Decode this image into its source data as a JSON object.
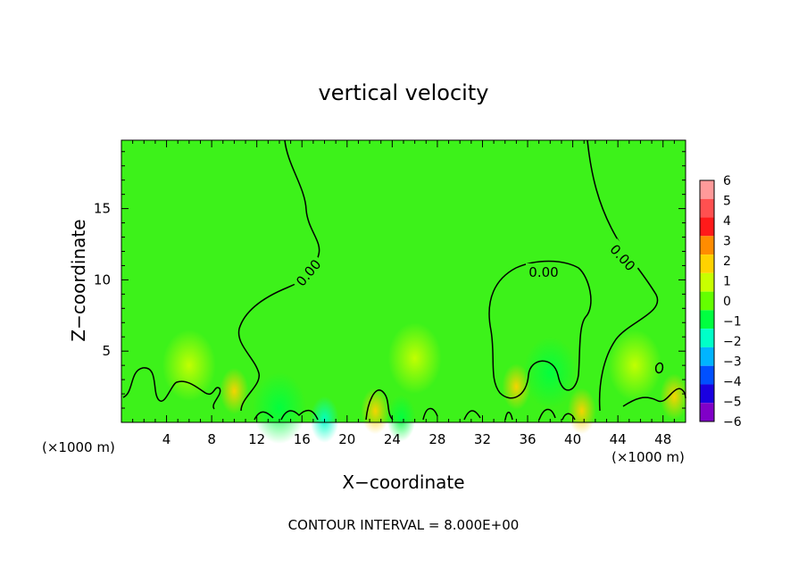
{
  "chart_data": {
    "type": "heatmap",
    "title": "vertical velocity",
    "xlabel": "X−coordinate",
    "ylabel": "Z−coordinate",
    "x_unit_left": "(×1000 m)",
    "x_unit_right": "(×1000 m)",
    "footer": "CONTOUR INTERVAL = 8.000E+00",
    "xlim": [
      0,
      50
    ],
    "ylim": [
      0,
      19.8
    ],
    "x_ticks": [
      4,
      8,
      12,
      16,
      20,
      24,
      28,
      32,
      36,
      40,
      44,
      48
    ],
    "y_ticks": [
      5,
      10,
      15
    ],
    "contour_labels": [
      "0.00",
      "0.00",
      "0.00"
    ],
    "colorbar": {
      "labels": [
        "6",
        "5",
        "4",
        "3",
        "2",
        "1",
        "0",
        "−1",
        "−2",
        "−3",
        "−4",
        "−5",
        "−6"
      ],
      "values": [
        6,
        5,
        4,
        3,
        2,
        1,
        0,
        -1,
        -2,
        -3,
        -4,
        -5,
        -6
      ],
      "colors": [
        "#ff9a9a",
        "#ff5050",
        "#ff1a1a",
        "#ff8c00",
        "#ffd200",
        "#c8ff00",
        "#64ff00",
        "#00ff40",
        "#00ffc8",
        "#00b4ff",
        "#0050ff",
        "#1a00e0",
        "#8000c8"
      ]
    },
    "background_color": "#3df21a",
    "hotspots": [
      {
        "x": 10.0,
        "z": 2.2,
        "value": 2.0
      },
      {
        "x": 35.0,
        "z": 2.5,
        "value": 2.0
      },
      {
        "x": 49.0,
        "z": 1.8,
        "value": 2.0
      },
      {
        "x": 22.5,
        "z": 0.8,
        "value": 1.5
      },
      {
        "x": 40.8,
        "z": 0.8,
        "value": 1.5
      },
      {
        "x": 6.0,
        "z": 4.0,
        "value": 0.8
      },
      {
        "x": 26.0,
        "z": 4.5,
        "value": 0.6
      },
      {
        "x": 45.5,
        "z": 4.0,
        "value": 0.8
      },
      {
        "x": 14.0,
        "z": 1.0,
        "value": -0.8
      },
      {
        "x": 18.0,
        "z": 0.2,
        "value": -2.0
      },
      {
        "x": 24.8,
        "z": 0.3,
        "value": -1.5
      },
      {
        "x": 38.0,
        "z": 3.5,
        "value": -0.6
      }
    ]
  }
}
